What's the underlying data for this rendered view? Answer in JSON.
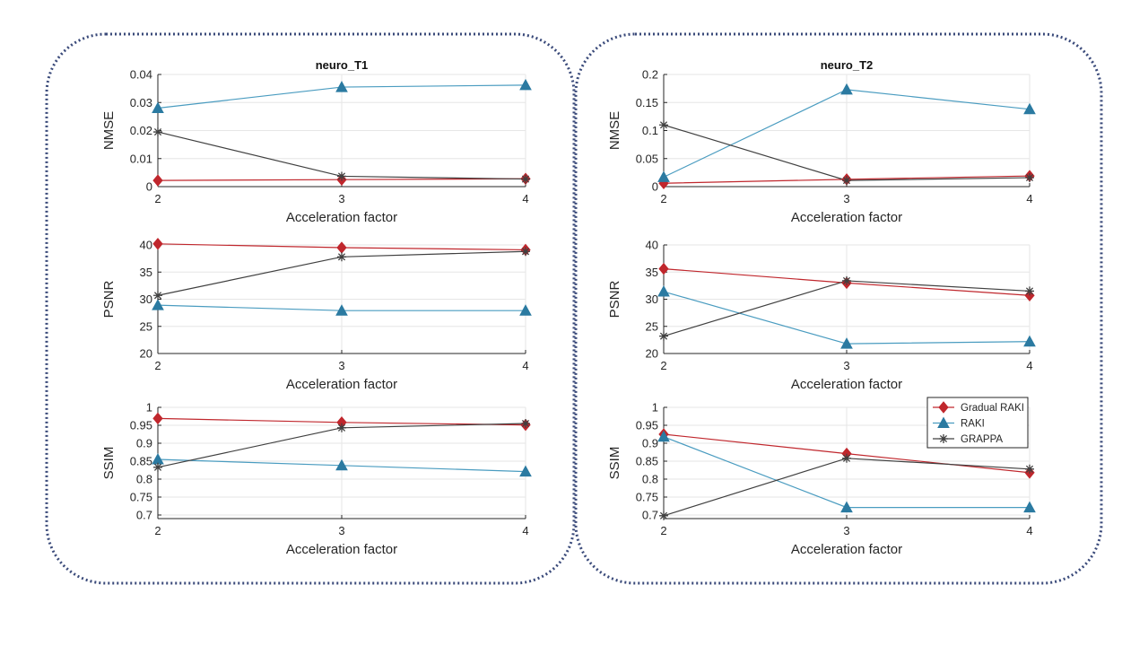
{
  "colors": {
    "gradual_raki": "#c0272d",
    "raki": "#4a9cc0",
    "grappa": "#404040",
    "marker_raki": "#2b7aa1",
    "grid": "#e6e6e6",
    "axis": "#262626",
    "panel_border": "#3a4a7a"
  },
  "legend": [
    {
      "name": "Gradual RAKI",
      "marker": "diamond",
      "color_key": "gradual_raki"
    },
    {
      "name": "RAKI",
      "marker": "triangle",
      "color_key": "raki"
    },
    {
      "name": "GRAPPA",
      "marker": "star",
      "color_key": "grappa"
    }
  ],
  "chart_data": [
    {
      "type": "line",
      "dataset": "neuro_T1",
      "title": "neuro_T1",
      "metric": "NMSE",
      "xlabel": "Acceleration factor",
      "ylabel": "NMSE",
      "x": [
        2,
        3,
        4
      ],
      "xlim": [
        2,
        4
      ],
      "ylim": [
        0,
        0.04
      ],
      "xticks": [
        "2",
        "3",
        "4"
      ],
      "yticks": [
        "0",
        "0.01",
        "0.02",
        "0.03",
        "0.04"
      ],
      "ytick_values": [
        0,
        0.01,
        0.02,
        0.03,
        0.04
      ],
      "series": [
        {
          "name": "Gradual RAKI",
          "values": [
            0.0022,
            0.0025,
            0.0028
          ]
        },
        {
          "name": "RAKI",
          "values": [
            0.028,
            0.0355,
            0.0362
          ]
        },
        {
          "name": "GRAPPA",
          "values": [
            0.0195,
            0.0037,
            0.0027
          ]
        }
      ]
    },
    {
      "type": "line",
      "dataset": "neuro_T1",
      "title": "",
      "metric": "PSNR",
      "xlabel": "Acceleration factor",
      "ylabel": "PSNR",
      "x": [
        2,
        3,
        4
      ],
      "xlim": [
        2,
        4
      ],
      "ylim": [
        20,
        40
      ],
      "xticks": [
        "2",
        "3",
        "4"
      ],
      "yticks": [
        "20",
        "25",
        "30",
        "35",
        "40"
      ],
      "ytick_values": [
        20,
        25,
        30,
        35,
        40
      ],
      "series": [
        {
          "name": "Gradual RAKI",
          "values": [
            40.2,
            39.5,
            39.1
          ]
        },
        {
          "name": "RAKI",
          "values": [
            28.9,
            27.9,
            27.9
          ]
        },
        {
          "name": "GRAPPA",
          "values": [
            30.7,
            37.8,
            38.8
          ]
        }
      ]
    },
    {
      "type": "line",
      "dataset": "neuro_T1",
      "title": "",
      "metric": "SSIM",
      "xlabel": "Acceleration factor",
      "ylabel": "SSIM",
      "x": [
        2,
        3,
        4
      ],
      "xlim": [
        2,
        4
      ],
      "ylim": [
        0.69,
        1.0
      ],
      "xticks": [
        "2",
        "3",
        "4"
      ],
      "yticks": [
        "0.7",
        "0.75",
        "0.8",
        "0.85",
        "0.9",
        "0.95",
        "1"
      ],
      "ytick_values": [
        0.7,
        0.75,
        0.8,
        0.85,
        0.9,
        0.95,
        1.0
      ],
      "series": [
        {
          "name": "Gradual RAKI",
          "values": [
            0.969,
            0.958,
            0.951
          ]
        },
        {
          "name": "RAKI",
          "values": [
            0.855,
            0.838,
            0.821
          ]
        },
        {
          "name": "GRAPPA",
          "values": [
            0.833,
            0.943,
            0.955
          ]
        }
      ]
    },
    {
      "type": "line",
      "dataset": "neuro_T2",
      "title": "neuro_T2",
      "metric": "NMSE",
      "xlabel": "Acceleration factor",
      "ylabel": "NMSE",
      "x": [
        2,
        3,
        4
      ],
      "xlim": [
        2,
        4
      ],
      "ylim": [
        0,
        0.2
      ],
      "xticks": [
        "2",
        "3",
        "4"
      ],
      "yticks": [
        "0",
        "0.05",
        "0.1",
        "0.15",
        "0.2"
      ],
      "ytick_values": [
        0,
        0.05,
        0.1,
        0.15,
        0.2
      ],
      "series": [
        {
          "name": "Gradual RAKI",
          "values": [
            0.006,
            0.013,
            0.019
          ]
        },
        {
          "name": "RAKI",
          "values": [
            0.017,
            0.173,
            0.138
          ]
        },
        {
          "name": "GRAPPA",
          "values": [
            0.11,
            0.011,
            0.016
          ]
        }
      ]
    },
    {
      "type": "line",
      "dataset": "neuro_T2",
      "title": "",
      "metric": "PSNR",
      "xlabel": "Acceleration factor",
      "ylabel": "PSNR",
      "x": [
        2,
        3,
        4
      ],
      "xlim": [
        2,
        4
      ],
      "ylim": [
        20,
        40
      ],
      "xticks": [
        "2",
        "3",
        "4"
      ],
      "yticks": [
        "20",
        "25",
        "30",
        "35",
        "40"
      ],
      "ytick_values": [
        20,
        25,
        30,
        35,
        40
      ],
      "series": [
        {
          "name": "Gradual RAKI",
          "values": [
            35.6,
            33.0,
            30.7
          ]
        },
        {
          "name": "RAKI",
          "values": [
            31.4,
            21.8,
            22.2
          ]
        },
        {
          "name": "GRAPPA",
          "values": [
            23.2,
            33.4,
            31.5
          ]
        }
      ]
    },
    {
      "type": "line",
      "dataset": "neuro_T2",
      "title": "",
      "metric": "SSIM",
      "xlabel": "Acceleration factor",
      "ylabel": "SSIM",
      "x": [
        2,
        3,
        4
      ],
      "xlim": [
        2,
        4
      ],
      "ylim": [
        0.69,
        1.0
      ],
      "xticks": [
        "2",
        "3",
        "4"
      ],
      "yticks": [
        "0.7",
        "0.75",
        "0.8",
        "0.85",
        "0.9",
        "0.95",
        "1"
      ],
      "ytick_values": [
        0.7,
        0.75,
        0.8,
        0.85,
        0.9,
        0.95,
        1.0
      ],
      "legend": "top-right",
      "series": [
        {
          "name": "Gradual RAKI",
          "values": [
            0.925,
            0.871,
            0.818
          ]
        },
        {
          "name": "RAKI",
          "values": [
            0.918,
            0.721,
            0.721
          ]
        },
        {
          "name": "GRAPPA",
          "values": [
            0.698,
            0.858,
            0.828
          ]
        }
      ]
    }
  ]
}
